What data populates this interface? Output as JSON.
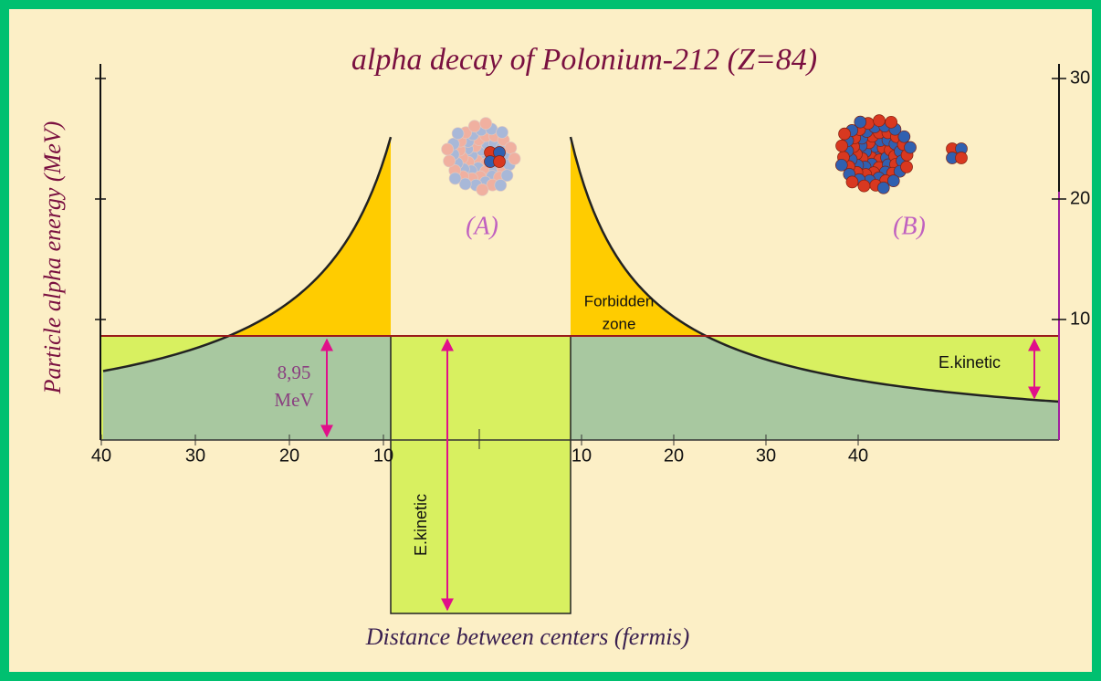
{
  "title": "alpha decay of  Polonium-212 (Z=84)",
  "y_axis_label": "Particle alpha energy (MeV)",
  "x_axis_label": "Distance between centers (fermis)",
  "y_ticks": [
    10,
    20,
    30
  ],
  "x_ticks_left": [
    40,
    30,
    20,
    10
  ],
  "x_ticks_right": [
    10,
    20,
    30,
    40
  ],
  "labels": {
    "a": "(A)",
    "b": "(B)",
    "forbidden": [
      "Forbidden",
      "zone"
    ],
    "energy": [
      "8,95",
      "MeV"
    ],
    "kinetic_right": "E.kinetic",
    "kinetic_well": "E.kinetic"
  }
}
